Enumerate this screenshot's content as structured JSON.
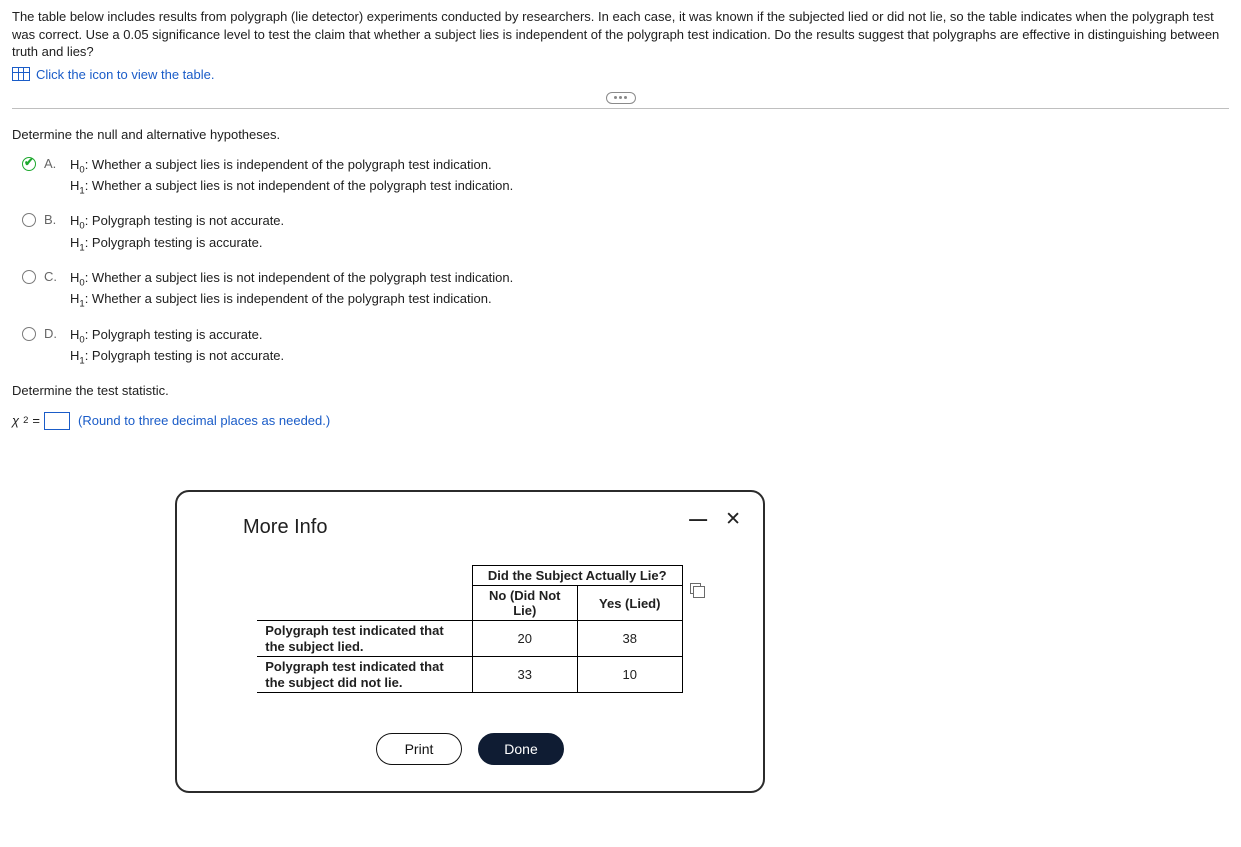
{
  "intro": "The table below includes results from polygraph (lie detector) experiments conducted by researchers. In each case, it was known if the subjected lied or did not lie, so the table indicates when the polygraph test was correct. Use a 0.05 significance level to test the claim that whether a subject lies is independent of the polygraph test indication. Do the results suggest that polygraphs are effective in distinguishing between truth and lies?",
  "view_table_link": "Click the icon to view the table.",
  "q1_label": "Determine the null and alternative hypotheses.",
  "options": {
    "A": {
      "h0": "Whether a subject lies is independent of the polygraph test indication.",
      "h1": "Whether a subject lies is not independent of the polygraph test indication.",
      "selected": true
    },
    "B": {
      "h0": "Polygraph testing is not accurate.",
      "h1": "Polygraph testing is accurate.",
      "selected": false
    },
    "C": {
      "h0": "Whether a subject lies is not independent of the polygraph test indication.",
      "h1": "Whether a subject lies is independent of the polygraph test indication.",
      "selected": false
    },
    "D": {
      "h0": "Polygraph testing is accurate.",
      "h1": "Polygraph testing is not accurate.",
      "selected": false
    }
  },
  "q2_label": "Determine the test statistic.",
  "stat_symbol": "χ",
  "stat_equals": "=",
  "stat_hint": "(Round to three decimal places as needed.)",
  "modal": {
    "title": "More Info",
    "question_header": "Did the Subject Actually Lie?",
    "col1": "No (Did Not Lie)",
    "col2": "Yes (Lied)",
    "row1_label": "Polygraph test indicated that the subject lied.",
    "row2_label": "Polygraph test indicated that the subject did not lie.",
    "data": {
      "r1c1": "20",
      "r1c2": "38",
      "r2c1": "33",
      "r2c2": "10"
    },
    "print": "Print",
    "done": "Done"
  },
  "labels": {
    "letter_A": "A.",
    "letter_B": "B.",
    "letter_C": "C.",
    "letter_D": "D.",
    "H0": "H",
    "H0sub": "0",
    "H1": "H",
    "H1sub": "1",
    "colon": ": ",
    "sup2": "2"
  }
}
